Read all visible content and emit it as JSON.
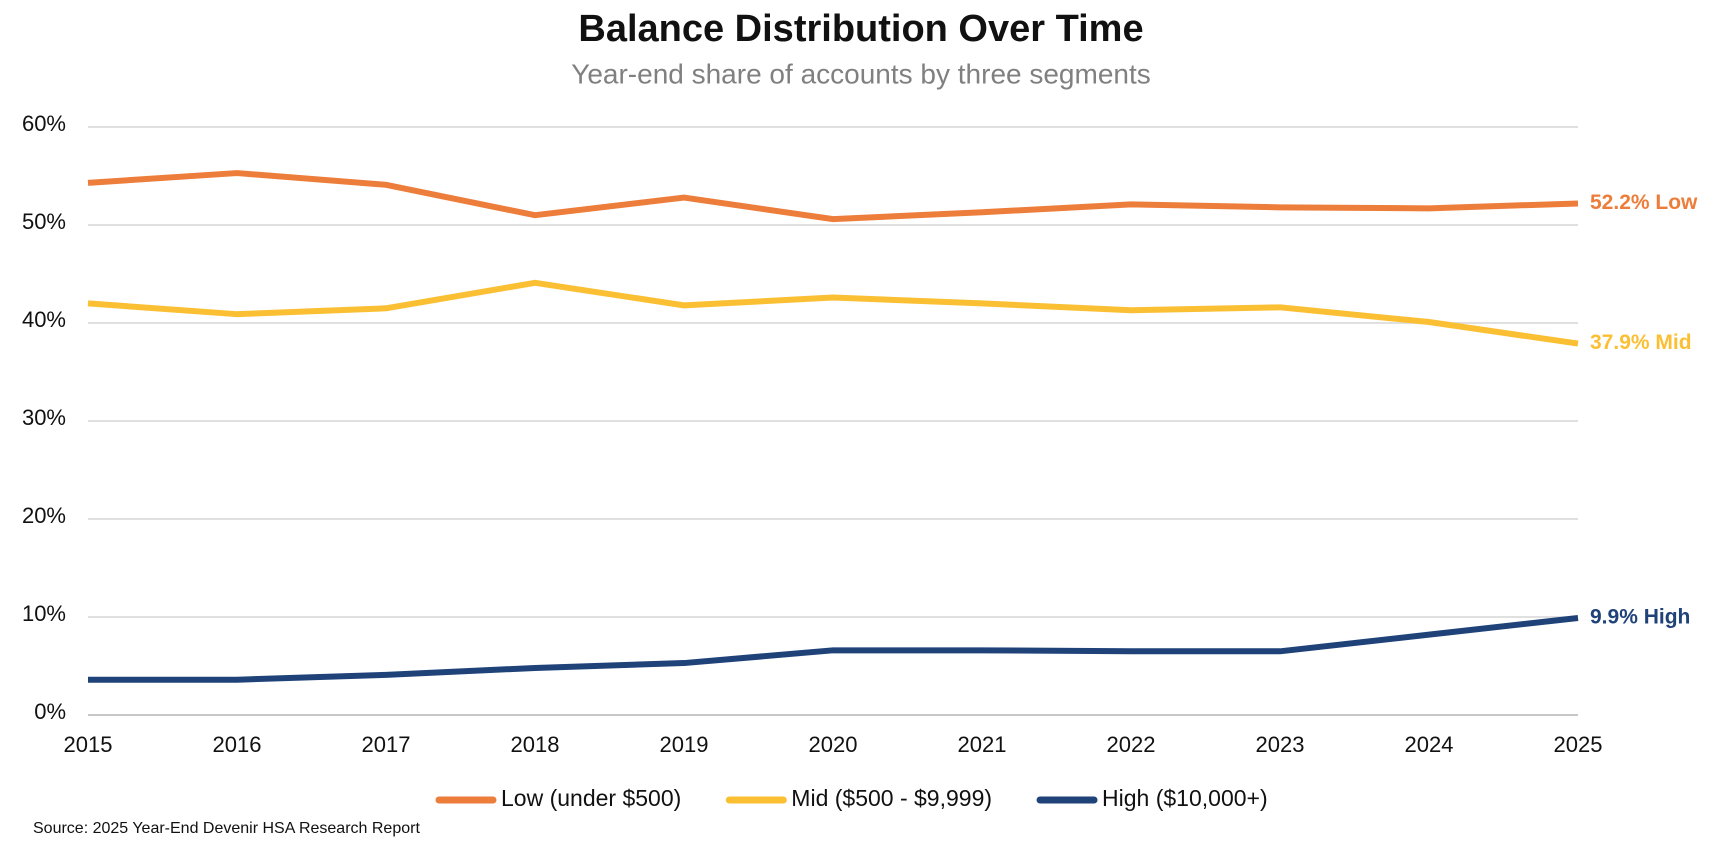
{
  "chart_data": {
    "type": "line",
    "title": "Balance Distribution Over Time",
    "subtitle": "Year-end share of accounts by three segments",
    "source": "Source: 2025 Year-End Devenir HSA Research Report",
    "x": [
      2015,
      2016,
      2017,
      2018,
      2019,
      2020,
      2021,
      2022,
      2023,
      2024,
      2025
    ],
    "xlim": [
      2015,
      2025
    ],
    "xticks": [
      2015,
      2016,
      2017,
      2018,
      2019,
      2020,
      2021,
      2022,
      2023,
      2024,
      2025
    ],
    "ylim": [
      0,
      60
    ],
    "yticks": [
      {
        "value": 0,
        "label": "0%"
      },
      {
        "value": 10,
        "label": "10%"
      },
      {
        "value": 20,
        "label": "20%"
      },
      {
        "value": 30,
        "label": "30%"
      },
      {
        "value": 40,
        "label": "40%"
      },
      {
        "value": 50,
        "label": "50%"
      },
      {
        "value": 60,
        "label": "60%"
      }
    ],
    "grid": true,
    "legend": "bottom",
    "series": [
      {
        "name": "Low (under $500)",
        "color": "#ed7d3a",
        "values": [
          54.3,
          55.3,
          54.1,
          51.0,
          52.8,
          50.6,
          51.3,
          52.1,
          51.8,
          51.7,
          52.2
        ],
        "value_labels": [
          null,
          null,
          null,
          null,
          null,
          null,
          null,
          null,
          null,
          null,
          "52.2% Low"
        ]
      },
      {
        "name": "Mid ($500 - $9,999)",
        "color": "#fbbf33",
        "values": [
          42.0,
          40.9,
          41.5,
          44.1,
          41.8,
          42.6,
          42.0,
          41.3,
          41.6,
          40.1,
          37.9
        ],
        "value_labels": [
          null,
          null,
          null,
          null,
          null,
          null,
          null,
          null,
          null,
          null,
          "37.9% Mid"
        ]
      },
      {
        "name": "High ($10,000+)",
        "color": "#1f4279",
        "values": [
          3.6,
          3.6,
          4.1,
          4.8,
          5.3,
          6.6,
          6.6,
          6.5,
          6.5,
          8.2,
          9.9
        ],
        "value_labels": [
          null,
          null,
          null,
          null,
          null,
          null,
          null,
          null,
          null,
          null,
          "9.9% High"
        ]
      }
    ]
  }
}
